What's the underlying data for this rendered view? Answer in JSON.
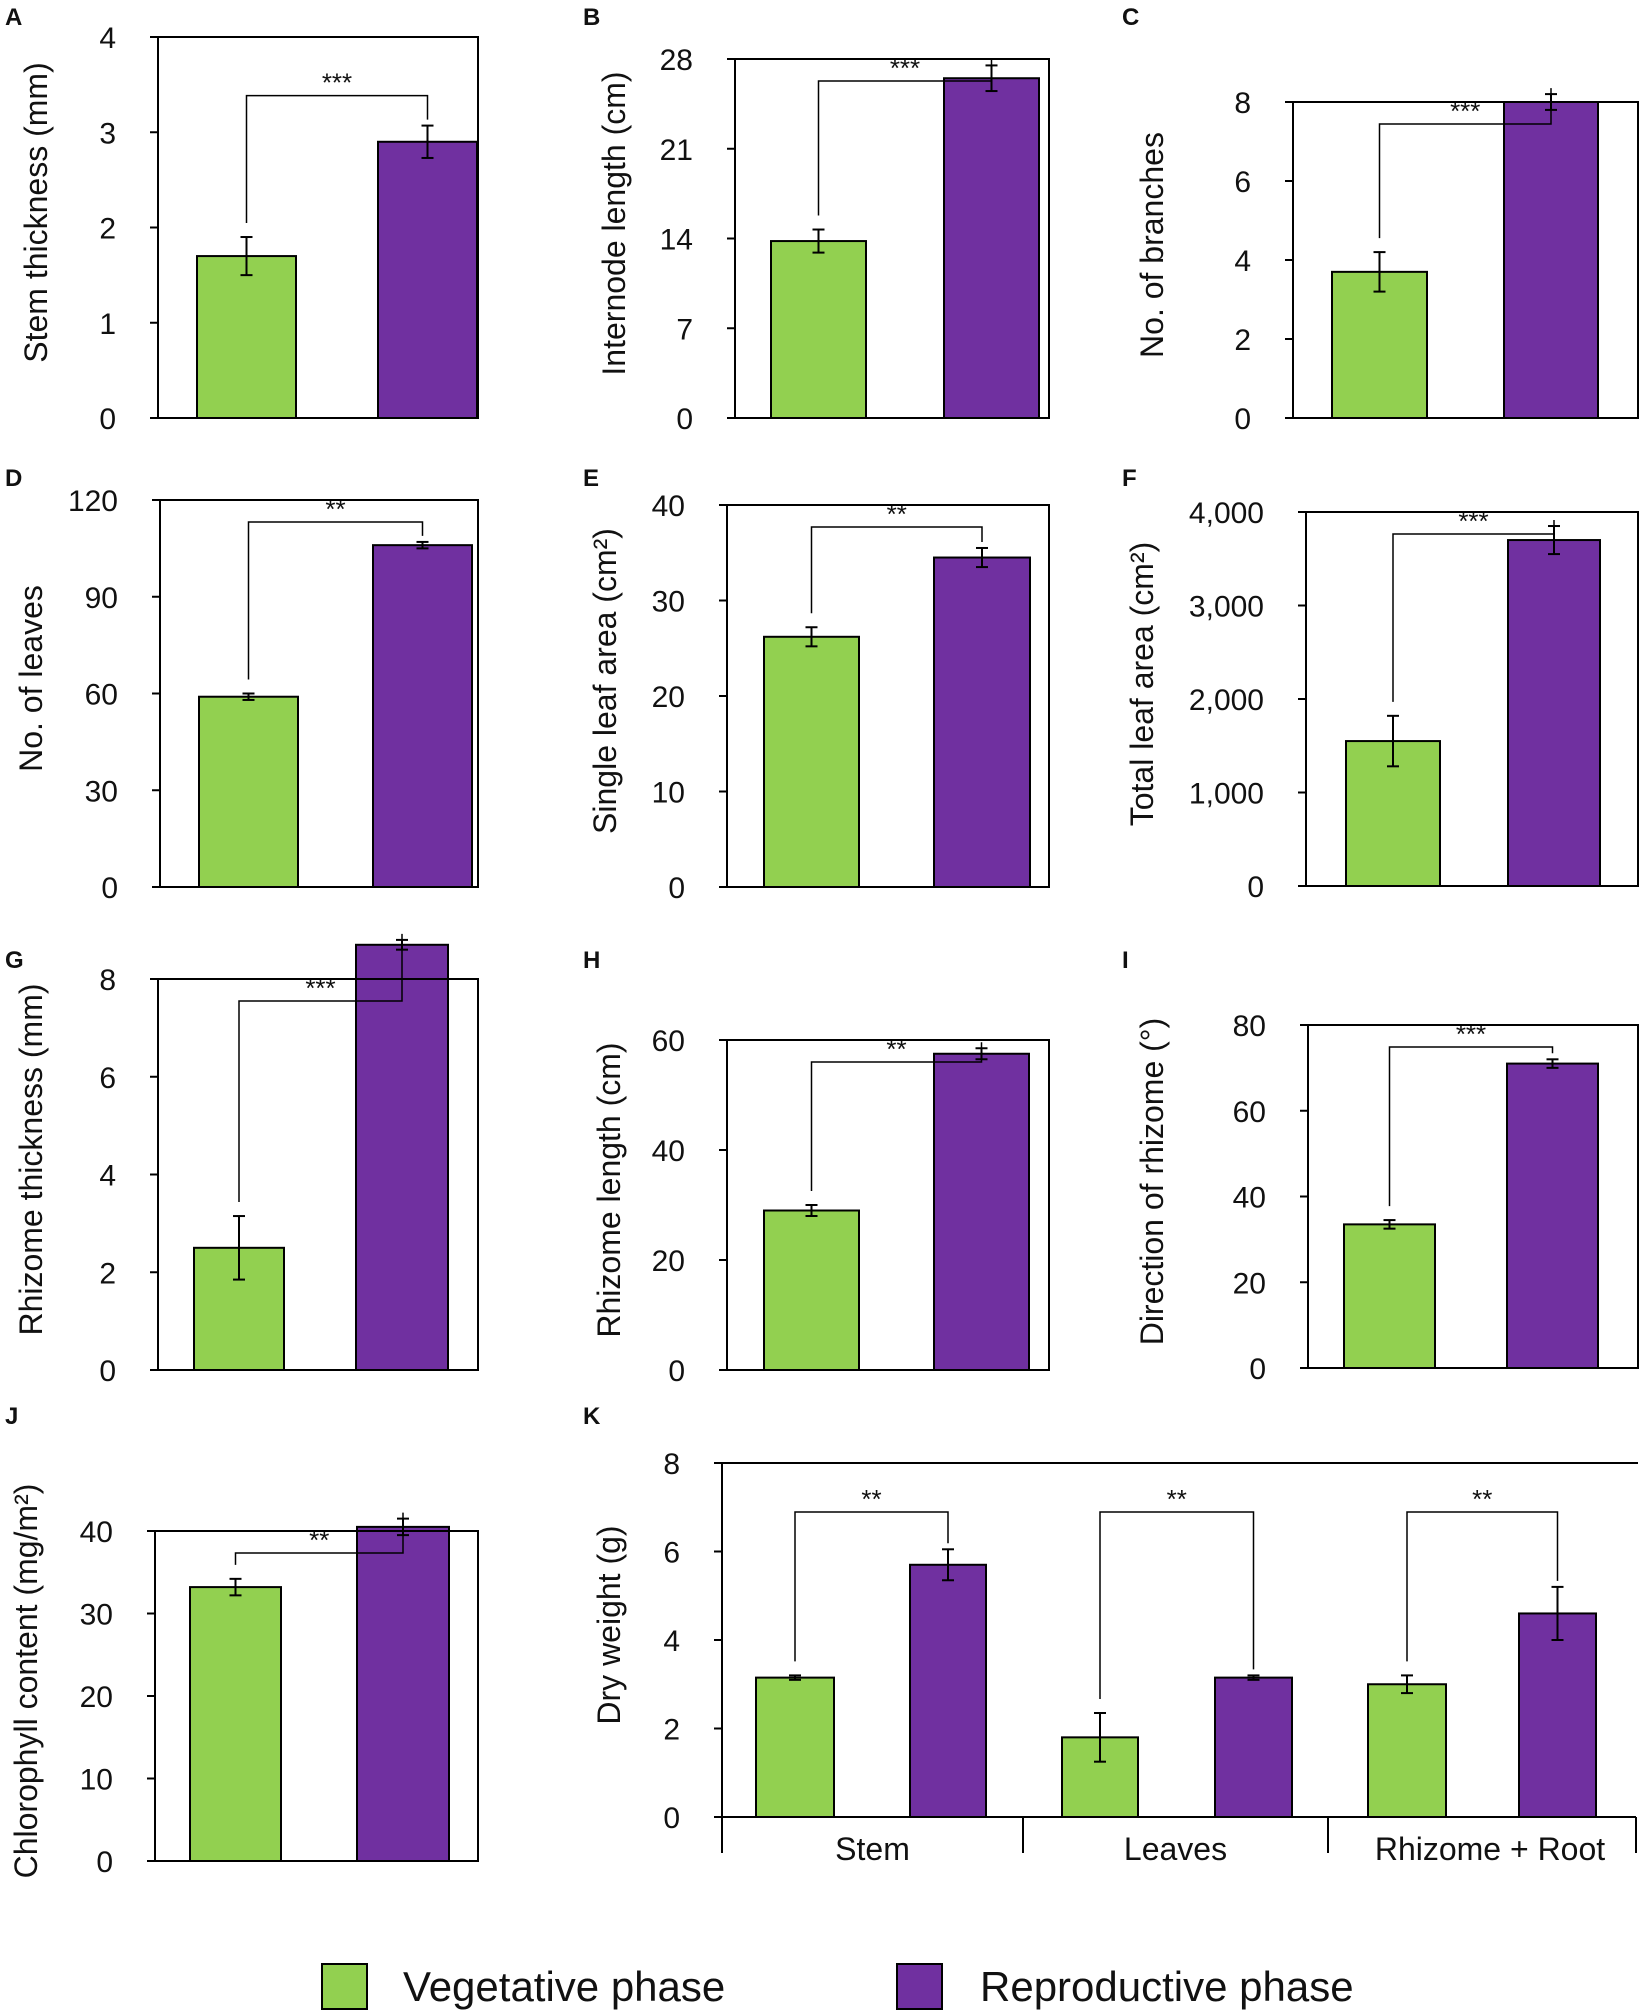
{
  "legend": {
    "items": [
      {
        "name": "Vegetative phase",
        "color": "#92d050"
      },
      {
        "name": "Reproductive phase",
        "color": "#7030a0"
      }
    ]
  },
  "chart_data": [
    {
      "panel": "A",
      "type": "bar",
      "ylabel": "Stem thickness (mm)",
      "ylim": [
        0,
        4
      ],
      "yticks": [
        "0",
        "1",
        "2",
        "3",
        "4"
      ],
      "series": [
        {
          "name": "Vegetative phase",
          "value": 1.7,
          "error": 0.2
        },
        {
          "name": "Reproductive phase",
          "value": 2.9,
          "error": 0.17
        }
      ],
      "significance": "***"
    },
    {
      "panel": "B",
      "type": "bar",
      "ylabel": "Internode length (cm)",
      "ylim": [
        0,
        28
      ],
      "yticks": [
        "0",
        "7",
        "14",
        "21",
        "28"
      ],
      "series": [
        {
          "name": "Vegetative phase",
          "value": 13.8,
          "error": 0.9
        },
        {
          "name": "Reproductive phase",
          "value": 26.5,
          "error": 1.0
        }
      ],
      "significance": "***"
    },
    {
      "panel": "C",
      "type": "bar",
      "ylabel": "No. of branches",
      "ylim": [
        0,
        8
      ],
      "yticks": [
        "0",
        "2",
        "4",
        "6",
        "8"
      ],
      "series": [
        {
          "name": "Vegetative phase",
          "value": 3.7,
          "error": 0.5
        },
        {
          "name": "Reproductive phase",
          "value": 8.0,
          "error": 0.2
        }
      ],
      "significance": "***"
    },
    {
      "panel": "D",
      "type": "bar",
      "ylabel": "No. of leaves",
      "ylim": [
        0,
        120
      ],
      "yticks": [
        "0",
        "30",
        "60",
        "90",
        "120"
      ],
      "series": [
        {
          "name": "Vegetative phase",
          "value": 59,
          "error": 1.0
        },
        {
          "name": "Reproductive phase",
          "value": 106,
          "error": 1.0
        }
      ],
      "significance": "**"
    },
    {
      "panel": "E",
      "type": "bar",
      "ylabel": "Single leaf area (cm²)",
      "ylim": [
        0,
        40
      ],
      "yticks": [
        "0",
        "10",
        "20",
        "30",
        "40"
      ],
      "series": [
        {
          "name": "Vegetative phase",
          "value": 26.2,
          "error": 1.0
        },
        {
          "name": "Reproductive phase",
          "value": 34.5,
          "error": 1.0
        }
      ],
      "significance": "**"
    },
    {
      "panel": "F",
      "type": "bar",
      "ylabel": "Total leaf area (cm²)",
      "ylim": [
        0,
        4000
      ],
      "yticks": [
        "0",
        "1,000",
        "2,000",
        "3,000",
        "4,000"
      ],
      "series": [
        {
          "name": "Vegetative phase",
          "value": 1550,
          "error": 270
        },
        {
          "name": "Reproductive phase",
          "value": 3700,
          "error": 150
        }
      ],
      "significance": "***"
    },
    {
      "panel": "G",
      "type": "bar",
      "ylabel": "Rhizome thickness (mm)",
      "ylim": [
        0,
        8
      ],
      "yticks": [
        "0",
        "2",
        "4",
        "6",
        "8"
      ],
      "series": [
        {
          "name": "Vegetative phase",
          "value": 2.5,
          "error": 0.65
        },
        {
          "name": "Reproductive phase",
          "value": 8.7,
          "error": 0.1
        }
      ],
      "significance": "***"
    },
    {
      "panel": "H",
      "type": "bar",
      "ylabel": "Rhizome length (cm)",
      "ylim": [
        0,
        60
      ],
      "yticks": [
        "0",
        "20",
        "40",
        "60"
      ],
      "series": [
        {
          "name": "Vegetative phase",
          "value": 29,
          "error": 1.0
        },
        {
          "name": "Reproductive phase",
          "value": 57.5,
          "error": 1.0
        }
      ],
      "significance": "**"
    },
    {
      "panel": "I",
      "type": "bar",
      "ylabel": "Direction of rhizome (°)",
      "ylim": [
        0,
        80
      ],
      "yticks": [
        "0",
        "20",
        "40",
        "60",
        "80"
      ],
      "series": [
        {
          "name": "Vegetative phase",
          "value": 33.5,
          "error": 1.0
        },
        {
          "name": "Reproductive phase",
          "value": 71,
          "error": 1.0
        }
      ],
      "significance": "***"
    },
    {
      "panel": "J",
      "type": "bar",
      "ylabel": "Chlorophyll content (mg/m²)",
      "ylim": [
        0,
        40
      ],
      "yticks": [
        "0",
        "10",
        "20",
        "30",
        "40"
      ],
      "series": [
        {
          "name": "Vegetative phase",
          "value": 33.2,
          "error": 1.0
        },
        {
          "name": "Reproductive phase",
          "value": 40.5,
          "error": 1.0
        }
      ],
      "significance": "**"
    },
    {
      "panel": "K",
      "type": "bar",
      "ylabel": "Dry weight (g)",
      "ylim": [
        0,
        8
      ],
      "yticks": [
        "0",
        "2",
        "4",
        "6",
        "8"
      ],
      "categories": [
        "Stem",
        "Leaves",
        "Rhizome + Root"
      ],
      "series": [
        {
          "name": "Vegetative phase",
          "values": [
            3.15,
            1.8,
            3.0
          ],
          "errors": [
            0.05,
            0.55,
            0.2
          ]
        },
        {
          "name": "Reproductive phase",
          "values": [
            5.7,
            3.15,
            4.6
          ],
          "errors": [
            0.35,
            0.05,
            0.6
          ]
        }
      ],
      "significance": [
        "**",
        "**",
        "**"
      ]
    }
  ]
}
